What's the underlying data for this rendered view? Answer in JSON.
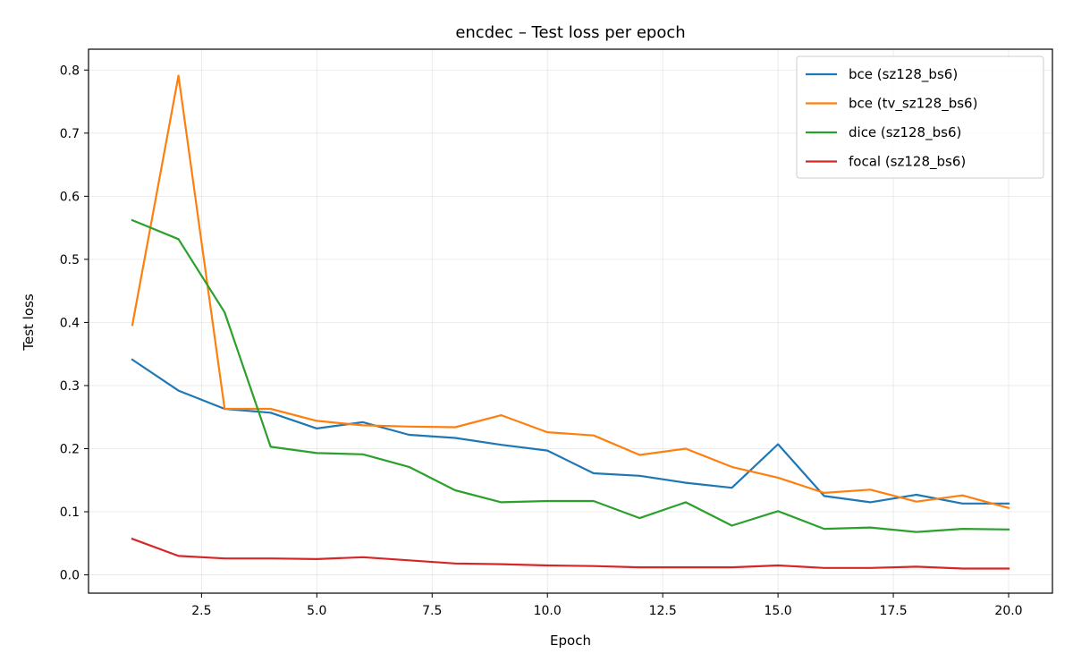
{
  "chart_data": {
    "type": "line",
    "title": "encdec – Test loss per epoch",
    "xlabel": "Epoch",
    "ylabel": "Test loss",
    "xlim": [
      0.05,
      20.95
    ],
    "ylim": [
      -0.029,
      0.833
    ],
    "xticks": [
      2.5,
      5.0,
      7.5,
      10.0,
      12.5,
      15.0,
      17.5,
      20.0
    ],
    "xtick_labels": [
      "2.5",
      "5.0",
      "7.5",
      "10.0",
      "12.5",
      "15.0",
      "17.5",
      "20.0"
    ],
    "yticks": [
      0.0,
      0.1,
      0.2,
      0.3,
      0.4,
      0.5,
      0.6,
      0.7,
      0.8
    ],
    "ytick_labels": [
      "0.0",
      "0.1",
      "0.2",
      "0.3",
      "0.4",
      "0.5",
      "0.6",
      "0.7",
      "0.8"
    ],
    "grid": true,
    "legend_position": "top-right",
    "x": [
      1,
      2,
      3,
      4,
      5,
      6,
      7,
      8,
      9,
      10,
      11,
      12,
      13,
      14,
      15,
      16,
      17,
      18,
      19,
      20
    ],
    "series": [
      {
        "name": "bce (sz128_bs6)",
        "color": "#1f77b4",
        "values": [
          0.341,
          0.292,
          0.263,
          0.257,
          0.232,
          0.242,
          0.222,
          0.217,
          0.206,
          0.197,
          0.161,
          0.157,
          0.146,
          0.138,
          0.207,
          0.125,
          0.115,
          0.127,
          0.113,
          0.113
        ]
      },
      {
        "name": "bce (tv_sz128_bs6)",
        "color": "#ff7f0e",
        "values": [
          0.396,
          0.791,
          0.263,
          0.263,
          0.244,
          0.237,
          0.235,
          0.234,
          0.253,
          0.226,
          0.221,
          0.19,
          0.2,
          0.171,
          0.154,
          0.13,
          0.135,
          0.116,
          0.126,
          0.106
        ]
      },
      {
        "name": "dice (sz128_bs6)",
        "color": "#2ca02c",
        "values": [
          0.562,
          0.532,
          0.416,
          0.203,
          0.193,
          0.191,
          0.171,
          0.134,
          0.115,
          0.117,
          0.117,
          0.09,
          0.115,
          0.078,
          0.101,
          0.073,
          0.075,
          0.068,
          0.073,
          0.072
        ]
      },
      {
        "name": "focal (sz128_bs6)",
        "color": "#d62728",
        "values": [
          0.057,
          0.03,
          0.026,
          0.026,
          0.025,
          0.028,
          0.023,
          0.018,
          0.017,
          0.015,
          0.014,
          0.012,
          0.012,
          0.012,
          0.015,
          0.011,
          0.011,
          0.013,
          0.01,
          0.01
        ]
      }
    ]
  }
}
